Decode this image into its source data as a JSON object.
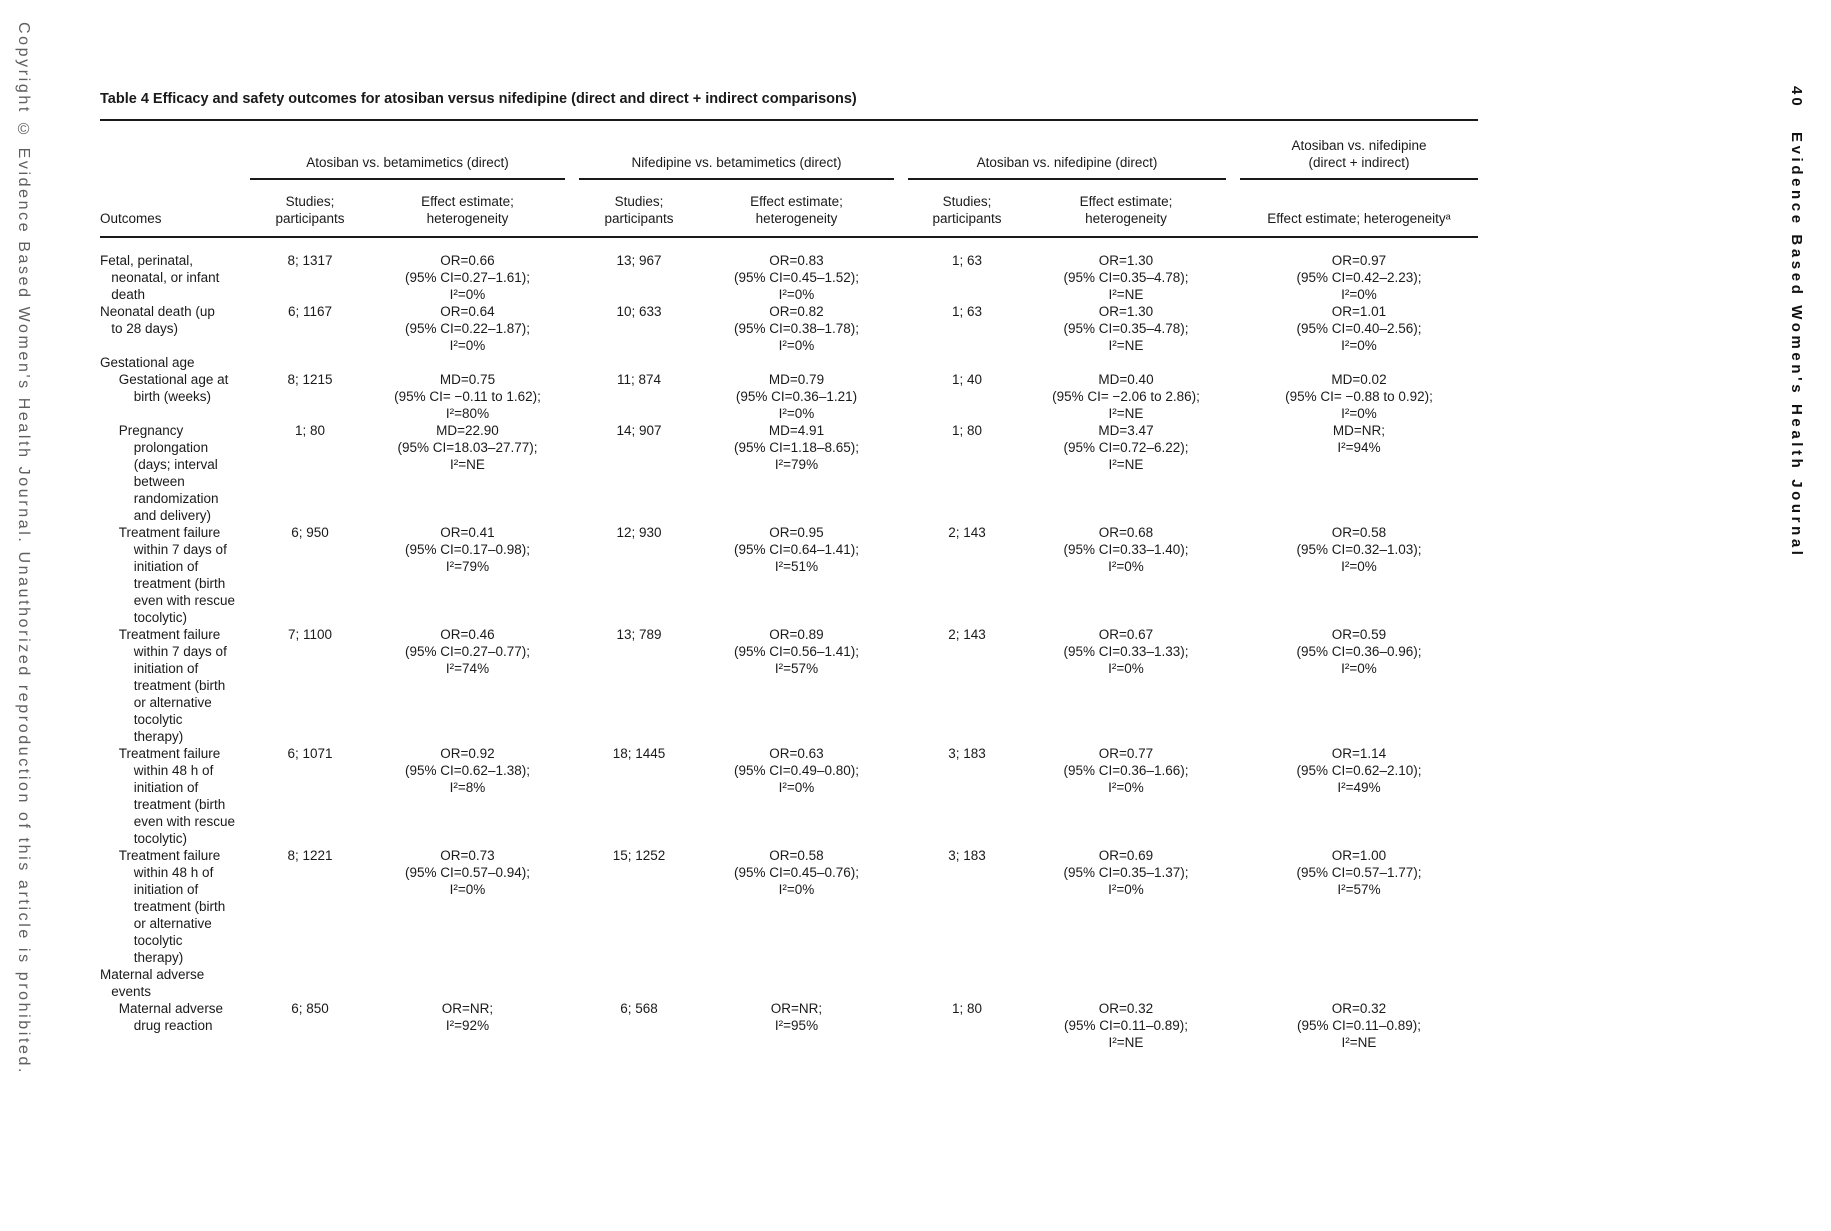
{
  "colors": {
    "text": "#1a1a1a",
    "rule": "#1a1a1a",
    "margin_text_gray": "#5f5f5f"
  },
  "margins": {
    "left_copyright": "Copyright © Evidence Based Women's Health Journal. Unauthorized reproduction of this article is prohibited.",
    "page_number": "40",
    "journal_name": "Evidence Based Women's Health Journal"
  },
  "table": {
    "title": "Table 4 Efficacy and safety outcomes for atosiban versus nifedipine (direct and direct + indirect comparisons)",
    "groups": [
      {
        "label": "Atosiban vs. betamimetics (direct)"
      },
      {
        "label": "Nifedipine vs. betamimetics (direct)"
      },
      {
        "label": "Atosiban vs. nifedipine (direct)"
      },
      {
        "label": "Atosiban vs. nifedipine\n(direct + indirect)"
      }
    ],
    "subheaders": {
      "outcomes": "Outcomes",
      "studies": "Studies;\nparticipants",
      "effect": "Effect estimate;\nheterogeneity",
      "effect_combined": "Effect estimate; heterogeneityᵃ"
    },
    "rows": [
      {
        "outcome": "Fetal, perinatal,\n   neonatal, or infant\n   death",
        "s1": "8; 1317",
        "e1": "OR=0.66\n(95% CI=0.27–1.61);\nI²=0%",
        "s2": "13; 967",
        "e2": "OR=0.83\n(95% CI=0.45–1.52);\nI²=0%",
        "s3": "1; 63",
        "e3": "OR=1.30\n(95% CI=0.35–4.78);\nI²=NE",
        "e4": "OR=0.97\n(95% CI=0.42–2.23);\nI²=0%"
      },
      {
        "outcome": "Neonatal death (up\n   to 28 days)",
        "s1": "6; 1167",
        "e1": "OR=0.64\n(95% CI=0.22–1.87);\nI²=0%",
        "s2": "10; 633",
        "e2": "OR=0.82\n(95% CI=0.38–1.78);\nI²=0%",
        "s3": "1; 63",
        "e3": "OR=1.30\n(95% CI=0.35–4.78);\nI²=NE",
        "e4": "OR=1.01\n(95% CI=0.40–2.56);\nI²=0%"
      },
      {
        "outcome": "Gestational age",
        "s1": "",
        "e1": "",
        "s2": "",
        "e2": "",
        "s3": "",
        "e3": "",
        "e4": ""
      },
      {
        "outcome": "     Gestational age at\n         birth (weeks)",
        "s1": "8; 1215",
        "e1": "MD=0.75\n(95% CI= −0.11 to 1.62);\nI²=80%",
        "s2": "11; 874",
        "e2": "MD=0.79\n(95% CI=0.36–1.21)\nI²=0%",
        "s3": "1; 40",
        "e3": "MD=0.40\n(95% CI= −2.06 to 2.86);\nI²=NE",
        "e4": "MD=0.02\n(95% CI= −0.88 to 0.92);\nI²=0%"
      },
      {
        "outcome": "     Pregnancy\n         prolongation\n         (days; interval\n         between\n         randomization\n         and delivery)",
        "s1": "1; 80",
        "e1": "MD=22.90\n(95% CI=18.03–27.77);\nI²=NE",
        "s2": "14; 907",
        "e2": "MD=4.91\n(95% CI=1.18–8.65);\nI²=79%",
        "s3": "1; 80",
        "e3": "MD=3.47\n(95% CI=0.72–6.22);\nI²=NE",
        "e4": "MD=NR;\nI²=94%"
      },
      {
        "outcome": "     Treatment failure\n         within 7 days of\n         initiation of\n         treatment (birth\n         even with rescue\n         tocolytic)",
        "s1": "6; 950",
        "e1": "OR=0.41\n(95% CI=0.17–0.98);\nI²=79%",
        "s2": "12; 930",
        "e2": "OR=0.95\n(95% CI=0.64–1.41);\nI²=51%",
        "s3": "2; 143",
        "e3": "OR=0.68\n(95% CI=0.33–1.40);\nI²=0%",
        "e4": "OR=0.58\n(95% CI=0.32–1.03);\nI²=0%"
      },
      {
        "outcome": "     Treatment failure\n         within 7 days of\n         initiation of\n         treatment (birth\n         or alternative\n         tocolytic\n         therapy)",
        "s1": "7; 1100",
        "e1": "OR=0.46\n(95% CI=0.27–0.77);\nI²=74%",
        "s2": "13; 789",
        "e2": "OR=0.89\n(95% CI=0.56–1.41);\nI²=57%",
        "s3": "2; 143",
        "e3": "OR=0.67\n(95% CI=0.33–1.33);\nI²=0%",
        "e4": "OR=0.59\n(95% CI=0.36–0.96);\nI²=0%"
      },
      {
        "outcome": "     Treatment failure\n         within 48 h of\n         initiation of\n         treatment (birth\n         even with rescue\n         tocolytic)",
        "s1": "6; 1071",
        "e1": "OR=0.92\n(95% CI=0.62–1.38);\nI²=8%",
        "s2": "18; 1445",
        "e2": "OR=0.63\n(95% CI=0.49–0.80);\nI²=0%",
        "s3": "3; 183",
        "e3": "OR=0.77\n(95% CI=0.36–1.66);\nI²=0%",
        "e4": "OR=1.14\n(95% CI=0.62–2.10);\nI²=49%"
      },
      {
        "outcome": "     Treatment failure\n         within 48 h of\n         initiation of\n         treatment (birth\n         or alternative\n         tocolytic\n         therapy)",
        "s1": "8; 1221",
        "e1": "OR=0.73\n(95% CI=0.57–0.94);\nI²=0%",
        "s2": "15; 1252",
        "e2": "OR=0.58\n(95% CI=0.45–0.76);\nI²=0%",
        "s3": "3; 183",
        "e3": "OR=0.69\n(95% CI=0.35–1.37);\nI²=0%",
        "e4": "OR=1.00\n(95% CI=0.57–1.77);\nI²=57%"
      },
      {
        "outcome": "Maternal adverse\n   events",
        "s1": "",
        "e1": "",
        "s2": "",
        "e2": "",
        "s3": "",
        "e3": "",
        "e4": ""
      },
      {
        "outcome": "     Maternal adverse\n         drug reaction",
        "s1": "6; 850",
        "e1": "OR=NR;\nI²=92%",
        "s2": "6; 568",
        "e2": "OR=NR;\nI²=95%",
        "s3": "1; 80",
        "e3": "OR=0.32\n(95% CI=0.11–0.89);\nI²=NE",
        "e4": "OR=0.32\n(95% CI=0.11–0.89);\nI²=NE"
      }
    ]
  }
}
